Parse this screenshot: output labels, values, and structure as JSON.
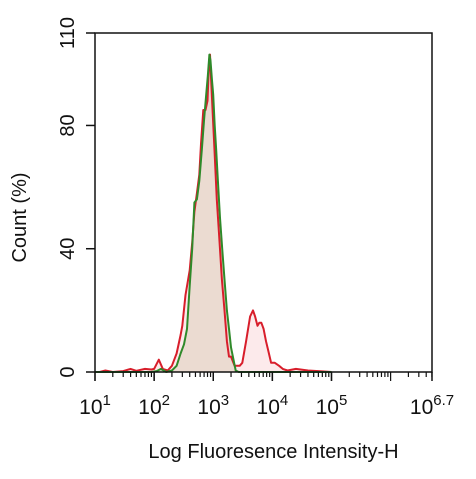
{
  "chart_data": {
    "type": "area",
    "title": "",
    "xlabel": "Log Fluoresence Intensity-H",
    "ylabel": "Count  (%)",
    "x_scale": "log",
    "xlim": [
      10,
      5011872
    ],
    "ylim": [
      0,
      110
    ],
    "grid": false,
    "legend": "none",
    "x_ticks": [
      {
        "base": "10",
        "exp": "1",
        "value": 10
      },
      {
        "base": "10",
        "exp": "2",
        "value": 100
      },
      {
        "base": "10",
        "exp": "3",
        "value": 1000
      },
      {
        "base": "10",
        "exp": "4",
        "value": 10000
      },
      {
        "base": "10",
        "exp": "5",
        "value": 100000
      },
      {
        "base": "10",
        "exp": "6.7",
        "value": 5011872
      }
    ],
    "y_ticks": [
      "0",
      "40",
      "80",
      "110"
    ],
    "y_tick_values": [
      0,
      40,
      80,
      110
    ],
    "series": [
      {
        "color": "#d81e2b",
        "fill": "#fbe6e8",
        "points": [
          [
            12,
            0
          ],
          [
            15,
            0.5
          ],
          [
            20,
            0
          ],
          [
            30,
            0.3
          ],
          [
            40,
            1
          ],
          [
            50,
            0.4
          ],
          [
            70,
            1
          ],
          [
            90,
            0.8
          ],
          [
            100,
            1
          ],
          [
            120,
            4
          ],
          [
            140,
            1
          ],
          [
            170,
            0.5
          ],
          [
            200,
            2
          ],
          [
            240,
            6
          ],
          [
            280,
            12
          ],
          [
            300,
            15
          ],
          [
            340,
            25
          ],
          [
            400,
            33
          ],
          [
            440,
            42
          ],
          [
            480,
            52
          ],
          [
            530,
            58
          ],
          [
            580,
            64
          ],
          [
            620,
            74
          ],
          [
            680,
            85
          ],
          [
            740,
            85
          ],
          [
            800,
            88
          ],
          [
            850,
            101
          ],
          [
            880,
            103
          ],
          [
            920,
            95
          ],
          [
            980,
            84
          ],
          [
            1050,
            72
          ],
          [
            1150,
            56
          ],
          [
            1250,
            45
          ],
          [
            1400,
            30
          ],
          [
            1550,
            20
          ],
          [
            1700,
            10
          ],
          [
            1850,
            5
          ],
          [
            2000,
            5
          ],
          [
            2300,
            2
          ],
          [
            2800,
            2
          ],
          [
            3100,
            3
          ],
          [
            3600,
            10
          ],
          [
            4200,
            18
          ],
          [
            4700,
            20
          ],
          [
            5100,
            18
          ],
          [
            5600,
            15
          ],
          [
            6000,
            16
          ],
          [
            6500,
            16
          ],
          [
            7100,
            14
          ],
          [
            7800,
            10
          ],
          [
            8500,
            7
          ],
          [
            9500,
            3
          ],
          [
            11000,
            3
          ],
          [
            13000,
            2
          ],
          [
            15000,
            1
          ],
          [
            18000,
            0.5
          ],
          [
            25000,
            1
          ],
          [
            40000,
            0.5
          ],
          [
            60000,
            0.3
          ],
          [
            100000,
            0
          ]
        ]
      },
      {
        "color": "#2f8a2a",
        "fill": "#e8d8cc",
        "points": [
          [
            10,
            0
          ],
          [
            30,
            0
          ],
          [
            60,
            0
          ],
          [
            90,
            0
          ],
          [
            110,
            0.3
          ],
          [
            130,
            1
          ],
          [
            160,
            0
          ],
          [
            200,
            0.5
          ],
          [
            240,
            2
          ],
          [
            280,
            6
          ],
          [
            320,
            9
          ],
          [
            360,
            14
          ],
          [
            400,
            28
          ],
          [
            440,
            40
          ],
          [
            480,
            55
          ],
          [
            530,
            56
          ],
          [
            580,
            62
          ],
          [
            640,
            72
          ],
          [
            700,
            82
          ],
          [
            760,
            90
          ],
          [
            810,
            96
          ],
          [
            860,
            103
          ],
          [
            900,
            101
          ],
          [
            950,
            95
          ],
          [
            1000,
            90
          ],
          [
            1060,
            80
          ],
          [
            1120,
            72
          ],
          [
            1200,
            62
          ],
          [
            1300,
            50
          ],
          [
            1420,
            40
          ],
          [
            1550,
            30
          ],
          [
            1700,
            20
          ],
          [
            1850,
            14
          ],
          [
            2000,
            8
          ],
          [
            2200,
            4
          ],
          [
            2400,
            0.5
          ],
          [
            2700,
            0
          ],
          [
            5000,
            0
          ],
          [
            100000,
            0
          ]
        ]
      }
    ]
  }
}
